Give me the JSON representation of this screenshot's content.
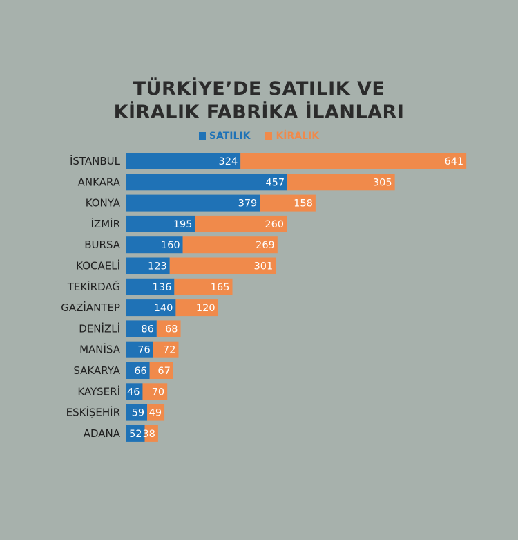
{
  "colors": {
    "background": "#a7b1ac",
    "satilik": "#1f72b6",
    "kiralik": "#f08a4b"
  },
  "chart_data": {
    "type": "bar",
    "orientation": "horizontal",
    "stacked": true,
    "title_lines": [
      "TÜRKİYE’DE SATILIK VE",
      "KİRALIK FABRİKA İLANLARI"
    ],
    "legend_position": "top-center",
    "grid": false,
    "categories": [
      "İSTANBUL",
      "ANKARA",
      "KONYA",
      "İZMİR",
      "BURSA",
      "KOCAELİ",
      "TEKİRDAĞ",
      "GAZİANTEP",
      "DENİZLİ",
      "MANİSA",
      "SAKARYA",
      "KAYSERİ",
      "ESKİŞEHİR",
      "ADANA"
    ],
    "series": [
      {
        "name": "SATILIK",
        "color": "#1f72b6",
        "values": [
          324,
          457,
          379,
          195,
          160,
          123,
          136,
          140,
          86,
          76,
          66,
          46,
          59,
          52
        ]
      },
      {
        "name": "KİRALIK",
        "color": "#f08a4b",
        "values": [
          641,
          305,
          158,
          260,
          269,
          301,
          165,
          120,
          68,
          72,
          67,
          70,
          49,
          38
        ]
      }
    ]
  }
}
